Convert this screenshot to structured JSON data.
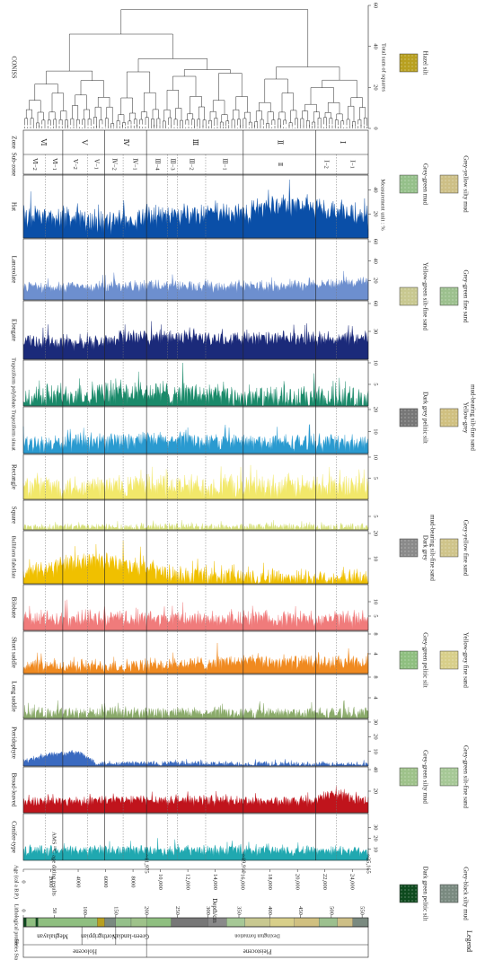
{
  "chart_data": {
    "type": "area",
    "orientation": "rotated-90-clockwise",
    "depth_axis": {
      "label": "Depth/cm",
      "range": [
        0,
        560
      ],
      "ticks": [
        0,
        50,
        100,
        150,
        200,
        250,
        300,
        350,
        400,
        450,
        500,
        550
      ]
    },
    "age_axis": {
      "label": "Age (cal a B.P.)",
      "range": [
        0,
        25165
      ],
      "ticks": [
        0,
        2000,
        4000,
        6000,
        8000,
        10000,
        12000,
        14000,
        16000,
        18000,
        20000,
        22000,
        24000
      ],
      "tick_labels": [
        "0",
        "2000",
        "4000",
        "6000",
        "8000",
        "10,000",
        "12,000",
        "14,000",
        "16,000",
        "18,000",
        "20,000",
        "22,000",
        "24,000"
      ],
      "dates_label": "AMS ¹⁴C age dating results",
      "dates": [
        "~11,975",
        "~19,910",
        "~25,165"
      ],
      "date_depths": [
        200,
        357,
        560
      ]
    },
    "x_axis_label": "Measurement unit : %",
    "series": [
      {
        "name": "Hat",
        "max": 50,
        "ticks": [
          20,
          40
        ],
        "color": "#0a4fa8",
        "base": 19,
        "amp": 10,
        "trend": [
          [
            0,
            17
          ],
          [
            150,
            13
          ],
          [
            200,
            18
          ],
          [
            360,
            22
          ],
          [
            450,
            28
          ],
          [
            550,
            18
          ]
        ]
      },
      {
        "name": "Lanceolate",
        "max": 60,
        "ticks": [
          20,
          40,
          60
        ],
        "color": "#6d8fcf",
        "base": 14,
        "amp": 6,
        "trend": [
          [
            0,
            13
          ],
          [
            200,
            14
          ],
          [
            400,
            14
          ],
          [
            550,
            18
          ]
        ]
      },
      {
        "name": "Elongate",
        "max": 60,
        "ticks": [
          30,
          60
        ],
        "color": "#1b2a7a",
        "base": 22,
        "amp": 8,
        "trend": [
          [
            0,
            20
          ],
          [
            100,
            17
          ],
          [
            180,
            24
          ],
          [
            360,
            22
          ],
          [
            550,
            22
          ]
        ]
      },
      {
        "name": "Trapeziform polylobate",
        "max": 10,
        "ticks": [
          5,
          10
        ],
        "color": "#1a8a6a",
        "base": 2,
        "amp": 3,
        "trend": [
          [
            0,
            2
          ],
          [
            150,
            3
          ],
          [
            250,
            3
          ],
          [
            400,
            1.5
          ],
          [
            550,
            1.5
          ]
        ]
      },
      {
        "name": "Trapeziform sinuat",
        "max": 20,
        "ticks": [
          10,
          20
        ],
        "color": "#2a9ad0",
        "base": 5,
        "amp": 4,
        "trend": [
          [
            0,
            4
          ],
          [
            200,
            6
          ],
          [
            400,
            5
          ],
          [
            550,
            5
          ]
        ]
      },
      {
        "name": "Rectangle",
        "max": 10,
        "ticks": [
          5,
          10
        ],
        "color": "#f2e86a",
        "base": 3,
        "amp": 3,
        "trend": [
          [
            0,
            3
          ],
          [
            300,
            3
          ],
          [
            550,
            3
          ]
        ]
      },
      {
        "name": "Square",
        "max": 10,
        "ticks": [
          5
        ],
        "color": "#d6e07a",
        "base": 1,
        "amp": 1.5,
        "trend": [
          [
            0,
            1
          ],
          [
            550,
            1
          ]
        ]
      },
      {
        "name": "Bulliform flabellate",
        "max": 20,
        "ticks": [
          10,
          20
        ],
        "color": "#f0c000",
        "base": 4,
        "amp": 4,
        "trend": [
          [
            0,
            4
          ],
          [
            100,
            9
          ],
          [
            170,
            8
          ],
          [
            250,
            3
          ],
          [
            550,
            2
          ]
        ]
      },
      {
        "name": "Bilobate",
        "max": 15,
        "ticks": [
          5,
          10
        ],
        "color": "#f07b7b",
        "base": 4,
        "amp": 3,
        "trend": [
          [
            0,
            4
          ],
          [
            550,
            4
          ]
        ]
      },
      {
        "name": "Short saddle",
        "max": 8,
        "ticks": [
          4,
          8
        ],
        "color": "#f08a20",
        "base": 1.5,
        "amp": 1.5,
        "trend": [
          [
            0,
            1.5
          ],
          [
            200,
            1.5
          ],
          [
            360,
            2.5
          ],
          [
            550,
            2
          ]
        ]
      },
      {
        "name": "Long saddle",
        "max": 8,
        "ticks": [
          4,
          8
        ],
        "color": "#8aaa6a",
        "base": 0.8,
        "amp": 1.2,
        "trend": [
          [
            0,
            1
          ],
          [
            550,
            1
          ]
        ]
      },
      {
        "name": "Pteridophyte",
        "max": 30,
        "ticks": [
          10,
          20,
          30
        ],
        "color": "#3a6ac0",
        "base": 2,
        "amp": 2,
        "trend": [
          [
            0,
            3
          ],
          [
            40,
            8
          ],
          [
            90,
            9
          ],
          [
            120,
            2
          ],
          [
            550,
            1
          ]
        ]
      },
      {
        "name": "Broad-leaved",
        "max": 40,
        "ticks": [
          20,
          40
        ],
        "color": "#c0141c",
        "base": 11,
        "amp": 5,
        "trend": [
          [
            0,
            10
          ],
          [
            200,
            12
          ],
          [
            470,
            10
          ],
          [
            500,
            18
          ],
          [
            550,
            12
          ]
        ]
      },
      {
        "name": "Conifer-type",
        "max": 40,
        "ticks": [
          10,
          20,
          30
        ],
        "color": "#20a8b0",
        "base": 9,
        "amp": 5,
        "trend": [
          [
            0,
            9
          ],
          [
            300,
            9
          ],
          [
            550,
            9
          ]
        ]
      }
    ],
    "coniss": {
      "label": "CONISS",
      "axis_label": "Total sum of squares",
      "range": [
        0,
        60
      ],
      "ticks": [
        0,
        20,
        40,
        60
      ]
    },
    "zones": [
      {
        "zone": "Ⅵ",
        "from": 0,
        "to": 64,
        "subzones": [
          {
            "label": "Ⅵ−2",
            "from": 0,
            "to": 36
          },
          {
            "label": "Ⅵ−1",
            "from": 36,
            "to": 64
          }
        ]
      },
      {
        "zone": "Ⅴ",
        "from": 64,
        "to": 132,
        "subzones": [
          {
            "label": "Ⅴ−2",
            "from": 64,
            "to": 104
          },
          {
            "label": "Ⅴ−1",
            "from": 104,
            "to": 132
          }
        ]
      },
      {
        "zone": "Ⅳ",
        "from": 132,
        "to": 200,
        "subzones": [
          {
            "label": "Ⅳ−2",
            "from": 132,
            "to": 162
          },
          {
            "label": "Ⅳ−1",
            "from": 162,
            "to": 200
          }
        ]
      },
      {
        "zone": "Ⅲ",
        "from": 200,
        "to": 357,
        "subzones": [
          {
            "label": "Ⅲ−4",
            "from": 200,
            "to": 234
          },
          {
            "label": "Ⅲ−3",
            "from": 234,
            "to": 250
          },
          {
            "label": "Ⅲ−2",
            "from": 250,
            "to": 296
          },
          {
            "label": "Ⅲ−1",
            "from": 296,
            "to": 357
          }
        ]
      },
      {
        "zone": "Ⅱ",
        "from": 357,
        "to": 475,
        "subzones": [
          {
            "label": "Ⅱ",
            "from": 357,
            "to": 475
          }
        ]
      },
      {
        "zone": "Ⅰ",
        "from": 475,
        "to": 560,
        "subzones": [
          {
            "label": "Ⅰ−2",
            "from": 475,
            "to": 508
          },
          {
            "label": "Ⅰ−1",
            "from": 508,
            "to": 560
          }
        ]
      }
    ],
    "stratigraphy": {
      "header": "Series Stage",
      "lithology_label": "Lithological profile",
      "series": [
        {
          "name": "Holocene",
          "from": 0,
          "to": 200
        },
        {
          "name": "Pleistocene",
          "from": 200,
          "to": 560
        }
      ],
      "stages": [
        {
          "name": "Meghalayan",
          "from": 0,
          "to": 95
        },
        {
          "name": "Northgrippian",
          "from": 95,
          "to": 150
        },
        {
          "name": "Green-landian",
          "from": 150,
          "to": 200
        },
        {
          "name": "Dexingtun formation",
          "from": 200,
          "to": 560
        }
      ],
      "lithology": [
        {
          "from": 0,
          "to": 5,
          "type": "Dark green pelitic silt"
        },
        {
          "from": 5,
          "to": 20,
          "type": "Grey-green pelitic silt"
        },
        {
          "from": 20,
          "to": 24,
          "type": "Dark green pelitic silt"
        },
        {
          "from": 24,
          "to": 120,
          "type": "Grey-green pelitic silt"
        },
        {
          "from": 120,
          "to": 132,
          "type": "Hazel silt"
        },
        {
          "from": 132,
          "to": 150,
          "type": "Grey-black silty mud"
        },
        {
          "from": 150,
          "to": 175,
          "type": "Grey-green mud"
        },
        {
          "from": 175,
          "to": 200,
          "type": "Grey-green silty mud"
        },
        {
          "from": 200,
          "to": 240,
          "type": "Grey-green pelitic silt"
        },
        {
          "from": 240,
          "to": 300,
          "type": "Dark grey pelitic silt"
        },
        {
          "from": 300,
          "to": 330,
          "type": "Dark grey mud-bearing silt-fine sand"
        },
        {
          "from": 330,
          "to": 360,
          "type": "Grey-green silt-fine sand"
        },
        {
          "from": 360,
          "to": 400,
          "type": "Yellow-green silt-fine sand"
        },
        {
          "from": 400,
          "to": 440,
          "type": "Yellow-grey fine sand"
        },
        {
          "from": 440,
          "to": 480,
          "type": "Yellow-grey mud-bearing silt-fine sand"
        },
        {
          "from": 480,
          "to": 510,
          "type": "Grey-green fine sand"
        },
        {
          "from": 510,
          "to": 535,
          "type": "Grey-yellow silty mud"
        },
        {
          "from": 535,
          "to": 560,
          "type": "Grey-black silty mud"
        }
      ]
    },
    "legend": {
      "title": "Legend",
      "items": [
        {
          "label": "Dark green pelitic silt",
          "color": "#0e4a1e"
        },
        {
          "label": "Grey-black silty mud",
          "color": "#7a8a80"
        },
        {
          "label": "Grey-green silty mud",
          "color": "#9ec28a"
        },
        {
          "label": "Grey-green silt-fine sand",
          "color": "#a6c896"
        },
        {
          "label": "Grey-green pelitic silt",
          "color": "#8fbf80"
        },
        {
          "label": "Yellow-grey fine sand",
          "color": "#d8cf8a"
        },
        {
          "label": "Dark grey mud-bearing silt-fine sand",
          "color": "#8a8a8a"
        },
        {
          "label": "Grey-yellow fine sand",
          "color": "#cfc48a"
        },
        {
          "label": "Dark grey pelitic silt",
          "color": "#777777"
        },
        {
          "label": "Yellow-grey mud-bearing silt-fine sand",
          "color": "#d0c080"
        },
        {
          "label": "Yellow-green silt-fine sand",
          "color": "#c8c890"
        },
        {
          "label": "Grey-green fine sand",
          "color": "#9cc08e"
        },
        {
          "label": "Grey-green mud",
          "color": "#95c08a"
        },
        {
          "label": "Grey-yellow silty mud",
          "color": "#cdbf86"
        },
        {
          "label": "Hazel silt",
          "color": "#b8a020"
        }
      ]
    }
  }
}
